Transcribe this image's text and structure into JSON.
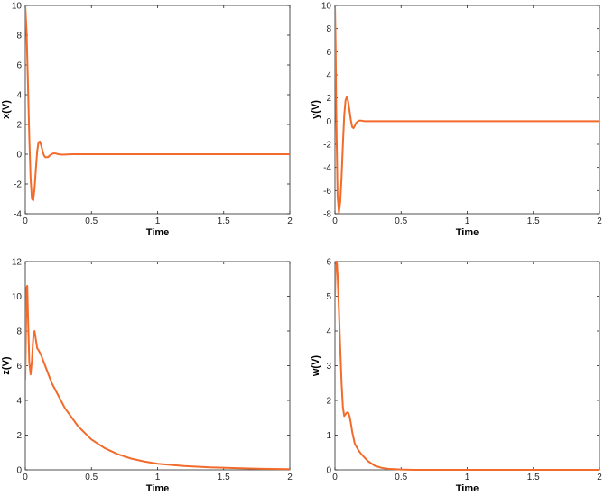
{
  "chart_data": [
    {
      "type": "line",
      "xlabel": "Time",
      "ylabel": "x(V)",
      "xlim": [
        0,
        2
      ],
      "ylim": [
        -4,
        10
      ],
      "xticks": [
        0,
        0.5,
        1,
        1.5,
        2
      ],
      "yticks": [
        -4,
        -2,
        0,
        2,
        4,
        6,
        8,
        10
      ],
      "grid": false,
      "series": [
        {
          "color": "#f26b2a",
          "x": [
            0,
            0.01,
            0.02,
            0.03,
            0.04,
            0.05,
            0.06,
            0.07,
            0.08,
            0.09,
            0.1,
            0.11,
            0.12,
            0.13,
            0.14,
            0.15,
            0.17,
            0.19,
            0.21,
            0.23,
            0.25,
            0.28,
            0.3,
            0.35,
            0.4,
            0.5,
            0.7,
            1,
            1.5,
            2
          ],
          "y": [
            10,
            8.2,
            4.8,
            1.2,
            -1.6,
            -3.0,
            -3.1,
            -2.3,
            -1.0,
            0.2,
            0.8,
            0.85,
            0.6,
            0.25,
            -0.05,
            -0.2,
            -0.2,
            -0.05,
            0.05,
            0.05,
            0.0,
            -0.03,
            -0.02,
            0.0,
            0.0,
            0.0,
            0.0,
            0.0,
            0.0,
            0.0
          ]
        }
      ]
    },
    {
      "type": "line",
      "xlabel": "Time",
      "ylabel": "y(V)",
      "xlim": [
        0,
        2
      ],
      "ylim": [
        -8,
        10
      ],
      "xticks": [
        0,
        0.5,
        1,
        1.5,
        2
      ],
      "yticks": [
        -8,
        -6,
        -4,
        -2,
        0,
        2,
        4,
        6,
        8,
        10
      ],
      "grid": false,
      "series": [
        {
          "color": "#f26b2a",
          "x": [
            0,
            0.005,
            0.01,
            0.02,
            0.03,
            0.04,
            0.05,
            0.06,
            0.07,
            0.08,
            0.09,
            0.1,
            0.11,
            0.12,
            0.13,
            0.14,
            0.15,
            0.16,
            0.18,
            0.2,
            0.22,
            0.25,
            0.3,
            0.4,
            0.5,
            1,
            1.5,
            2
          ],
          "y": [
            10,
            6.5,
            0.5,
            -6.5,
            -7.9,
            -7.0,
            -4.8,
            -2.0,
            0.5,
            1.8,
            2.1,
            1.7,
            0.9,
            0.1,
            -0.5,
            -0.6,
            -0.4,
            -0.15,
            0.05,
            0.05,
            0.0,
            0.0,
            0.0,
            0.0,
            0.0,
            0.0,
            0.0,
            0.0
          ]
        }
      ]
    },
    {
      "type": "line",
      "xlabel": "Time",
      "ylabel": "z(V)",
      "xlim": [
        0,
        2
      ],
      "ylim": [
        0,
        12
      ],
      "xticks": [
        0,
        0.5,
        1,
        1.5,
        2
      ],
      "yticks": [
        0,
        2,
        4,
        6,
        8,
        10,
        12
      ],
      "grid": false,
      "series": [
        {
          "color": "#f26b2a",
          "x": [
            0,
            0.005,
            0.01,
            0.015,
            0.02,
            0.03,
            0.04,
            0.05,
            0.06,
            0.07,
            0.08,
            0.09,
            0.1,
            0.12,
            0.15,
            0.2,
            0.3,
            0.4,
            0.5,
            0.6,
            0.7,
            0.8,
            0.9,
            1.0,
            1.2,
            1.4,
            1.6,
            1.8,
            2.0
          ],
          "y": [
            5.2,
            8.0,
            10.5,
            10.6,
            9.0,
            6.2,
            5.5,
            6.3,
            7.6,
            8.0,
            7.5,
            7.0,
            6.9,
            6.6,
            6.0,
            5.0,
            3.55,
            2.5,
            1.75,
            1.25,
            0.9,
            0.65,
            0.48,
            0.35,
            0.22,
            0.14,
            0.1,
            0.06,
            0.04
          ]
        }
      ]
    },
    {
      "type": "line",
      "xlabel": "Time",
      "ylabel": "w(V)",
      "xlim": [
        0,
        2
      ],
      "ylim": [
        0,
        6
      ],
      "xticks": [
        0,
        0.5,
        1,
        1.5,
        2
      ],
      "yticks": [
        0,
        1,
        2,
        3,
        4,
        5,
        6
      ],
      "grid": false,
      "series": [
        {
          "color": "#f26b2a",
          "x": [
            0,
            0.005,
            0.01,
            0.015,
            0.02,
            0.03,
            0.04,
            0.05,
            0.06,
            0.07,
            0.08,
            0.09,
            0.1,
            0.11,
            0.12,
            0.13,
            0.15,
            0.18,
            0.2,
            0.25,
            0.3,
            0.35,
            0.4,
            0.5,
            0.6,
            0.8,
            1.0,
            1.5,
            2.0
          ],
          "y": [
            5.0,
            5.8,
            6.0,
            5.95,
            5.6,
            4.6,
            3.5,
            2.5,
            1.8,
            1.55,
            1.6,
            1.65,
            1.65,
            1.55,
            1.35,
            1.1,
            0.75,
            0.55,
            0.45,
            0.25,
            0.12,
            0.06,
            0.03,
            0.01,
            0.0,
            0.0,
            0.0,
            0.0,
            0.0
          ]
        }
      ]
    }
  ]
}
